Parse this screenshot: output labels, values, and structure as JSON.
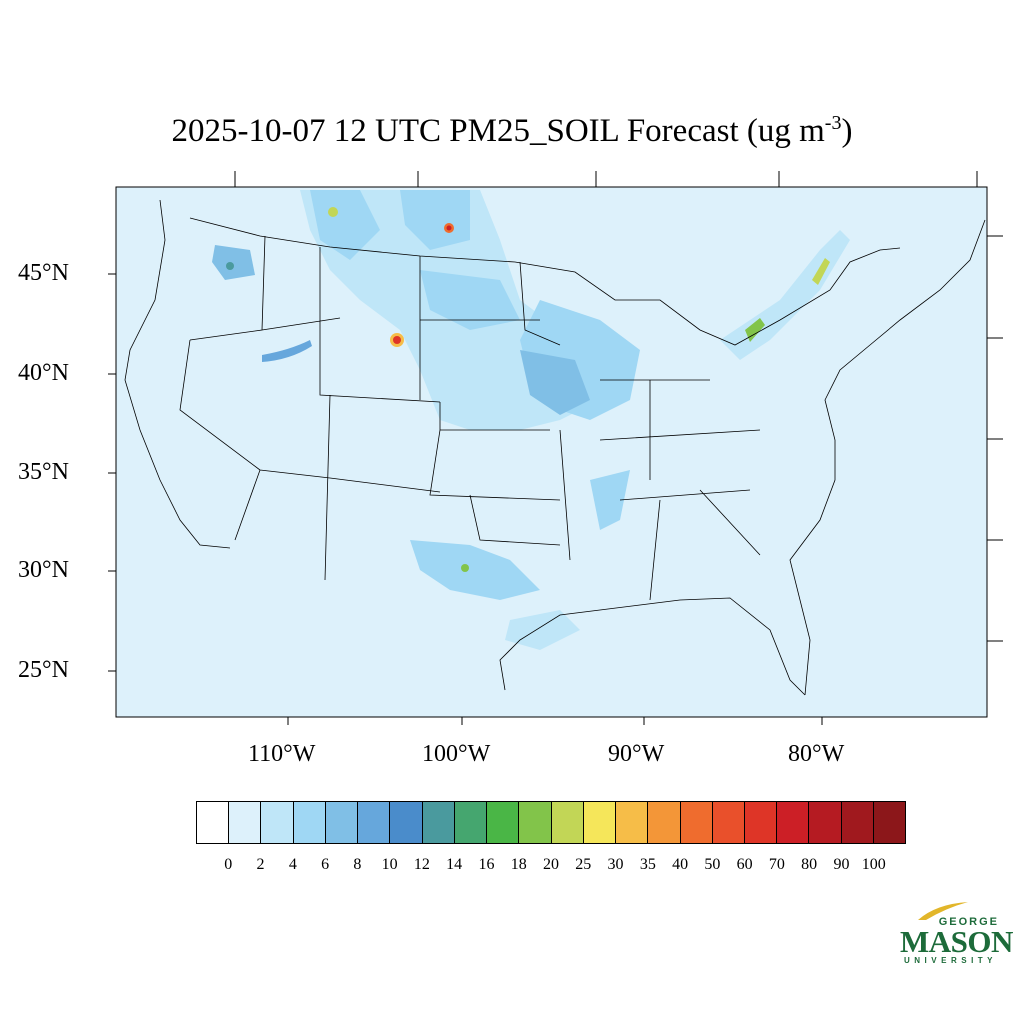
{
  "title": {
    "text": "2025-10-07 12 UTC PM25_SOIL Forecast (ug m",
    "sup": "-3",
    "close": ")"
  },
  "map": {
    "background_color": "#ddf1fb",
    "lat_labels": [
      "45°N",
      "40°N",
      "35°N",
      "30°N",
      "25°N"
    ],
    "lon_labels": [
      "110°W",
      "100°W",
      "90°W",
      "80°W"
    ]
  },
  "colorbar": {
    "colors": [
      "#ffffff",
      "#ddf1fb",
      "#bfe6f8",
      "#9fd7f4",
      "#80bfe6",
      "#66a7dc",
      "#4a8ccb",
      "#4a9a9e",
      "#45a66f",
      "#4ab646",
      "#82c44a",
      "#c2d656",
      "#f5e65a",
      "#f6bd48",
      "#f39638",
      "#ef6c2e",
      "#e9502b",
      "#de3527",
      "#cc1f26",
      "#b51b22",
      "#a0191e",
      "#8c171a"
    ],
    "labels": [
      "0",
      "2",
      "4",
      "6",
      "8",
      "10",
      "12",
      "14",
      "16",
      "18",
      "20",
      "25",
      "30",
      "35",
      "40",
      "50",
      "60",
      "70",
      "80",
      "90",
      "100"
    ]
  },
  "logo": {
    "george": "GEORGE",
    "mason": "MASON",
    "university": "UNIVERSITY",
    "color": "#1d6b3a",
    "accent": "#e2b62a"
  }
}
